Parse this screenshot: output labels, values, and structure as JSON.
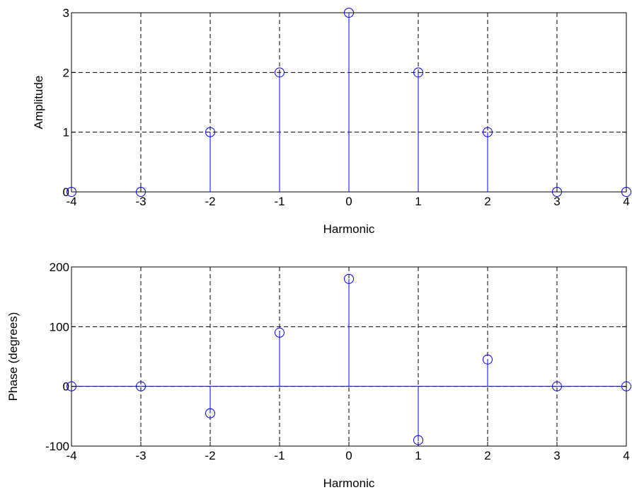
{
  "chart_data": [
    {
      "type": "stem",
      "xlabel": "Harmonic",
      "ylabel": "Amplitude",
      "xlim": [
        -4,
        4
      ],
      "ylim": [
        0,
        3
      ],
      "xticks": [
        -4,
        -3,
        -2,
        -1,
        0,
        1,
        2,
        3,
        4
      ],
      "yticks": [
        0,
        1,
        2,
        3
      ],
      "grid": true,
      "color": "#0000ff",
      "x": [
        -4,
        -3,
        -2,
        -1,
        0,
        1,
        2,
        3,
        4
      ],
      "y": [
        0,
        0,
        1,
        2,
        3,
        2,
        1,
        0,
        0
      ]
    },
    {
      "type": "stem",
      "xlabel": "Harmonic",
      "ylabel": "Phase (degrees)",
      "xlim": [
        -4,
        4
      ],
      "ylim": [
        -100,
        200
      ],
      "xticks": [
        -4,
        -3,
        -2,
        -1,
        0,
        1,
        2,
        3,
        4
      ],
      "yticks": [
        -100,
        0,
        100,
        200
      ],
      "grid": true,
      "color": "#0000ff",
      "x": [
        -4,
        -3,
        -2,
        -1,
        0,
        1,
        2,
        3,
        4
      ],
      "y": [
        0,
        0,
        -45,
        90,
        180,
        -90,
        45,
        0,
        0
      ]
    }
  ]
}
